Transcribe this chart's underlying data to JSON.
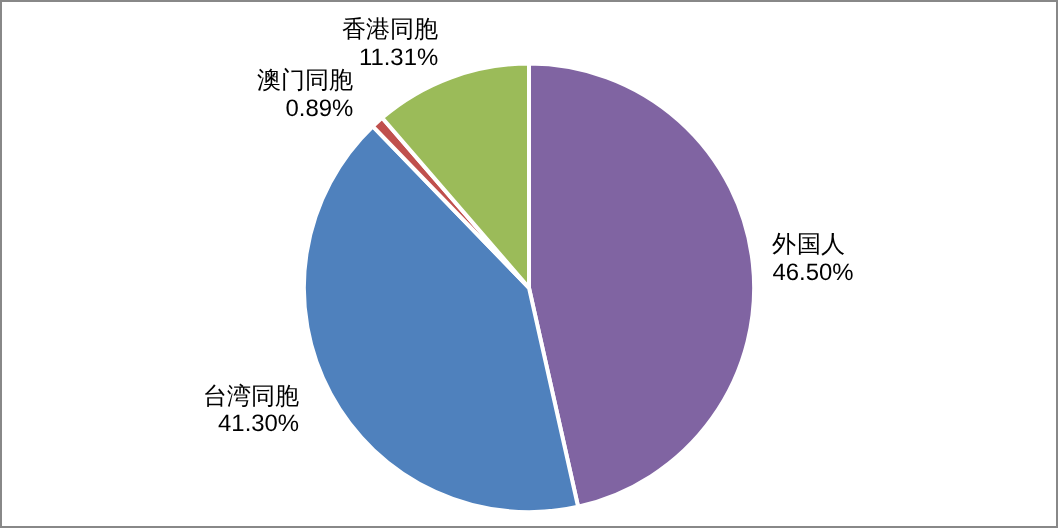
{
  "chart_data": {
    "type": "pie",
    "categories": [
      "外国人",
      "台湾同胞",
      "澳门同胞",
      "香港同胞"
    ],
    "values": [
      46.5,
      41.3,
      0.89,
      11.31
    ],
    "value_labels": [
      "46.50%",
      "41.30%",
      "0.89%",
      "11.31%"
    ],
    "colors": [
      "#8064a2",
      "#4f81bd",
      "#c0504d",
      "#9bbb59"
    ],
    "legend": false
  }
}
